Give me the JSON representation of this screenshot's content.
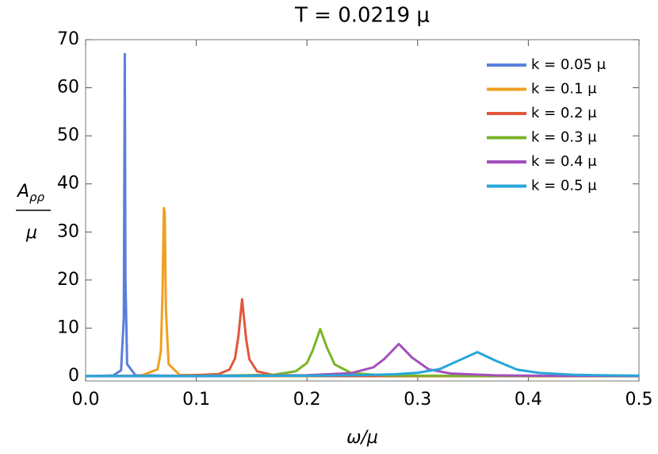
{
  "chart_data": {
    "type": "line",
    "title": "T = 0.0219 μ",
    "xlabel": "ω/μ",
    "ylabel": {
      "numerator": "A",
      "subscript": "ρρ",
      "denominator": "μ"
    },
    "xlim": [
      0,
      0.5
    ],
    "ylim": [
      -1,
      70
    ],
    "xticks": [
      {
        "value": 0,
        "label": "0.0"
      },
      0.1,
      0.2,
      0.3,
      0.4,
      0.5
    ],
    "yticks": [
      0,
      10,
      20,
      30,
      40,
      50,
      60,
      70
    ],
    "legend": "top-right",
    "series": [
      {
        "name": "k = 0.05 μ",
        "color": "#5a7fdc",
        "x": [
          0,
          0.025,
          0.032,
          0.0345,
          0.0354,
          0.036,
          0.0375,
          0.045,
          0.1,
          0.5
        ],
        "values": [
          0,
          0.15,
          1.2,
          12,
          67,
          20,
          2.5,
          0.2,
          0.01,
          0
        ]
      },
      {
        "name": "k = 0.1 μ",
        "color": "#f0a020",
        "x": [
          0,
          0.05,
          0.065,
          0.068,
          0.0695,
          0.0707,
          0.0715,
          0.0725,
          0.075,
          0.085,
          0.15,
          0.5
        ],
        "values": [
          0,
          0.12,
          1.4,
          5.2,
          17.5,
          35,
          34,
          14,
          2.5,
          0.25,
          0.01,
          0
        ]
      },
      {
        "name": "k = 0.2 μ",
        "color": "#e2573c",
        "x": [
          0,
          0.08,
          0.12,
          0.13,
          0.135,
          0.138,
          0.1414,
          0.145,
          0.148,
          0.155,
          0.17,
          0.22,
          0.5
        ],
        "values": [
          0,
          0.05,
          0.42,
          1.38,
          3.69,
          8.2,
          16,
          7.8,
          3.5,
          0.99,
          0.23,
          0.03,
          0
        ]
      },
      {
        "name": "k = 0.3 μ",
        "color": "#7ab52a",
        "x": [
          0,
          0.1,
          0.17,
          0.19,
          0.2,
          0.205,
          0.212,
          0.218,
          0.225,
          0.24,
          0.27,
          0.35,
          0.5
        ],
        "values": [
          0.01,
          0.04,
          0.3,
          1.03,
          2.75,
          5.25,
          9.8,
          5.98,
          2.45,
          0.66,
          0.16,
          0.03,
          0.01
        ]
      },
      {
        "name": "k = 0.4 μ",
        "color": "#a44fbd",
        "x": [
          0,
          0.1,
          0.2,
          0.24,
          0.26,
          0.27,
          0.283,
          0.295,
          0.31,
          0.33,
          0.37,
          0.43,
          0.5
        ],
        "values": [
          0.02,
          0.04,
          0.19,
          0.64,
          1.83,
          3.6,
          6.7,
          3.86,
          1.42,
          0.55,
          0.17,
          0.06,
          0.03
        ]
      },
      {
        "name": "k = 0.5 μ",
        "color": "#26a6d9",
        "x": [
          0,
          0.1,
          0.2,
          0.25,
          0.28,
          0.3,
          0.32,
          0.34,
          0.354,
          0.37,
          0.39,
          0.41,
          0.44,
          0.47,
          0.5
        ],
        "values": [
          0.02,
          0.04,
          0.1,
          0.21,
          0.41,
          0.71,
          1.47,
          3.55,
          5,
          3.27,
          1.36,
          0.67,
          0.31,
          0.17,
          0.11
        ]
      }
    ]
  }
}
